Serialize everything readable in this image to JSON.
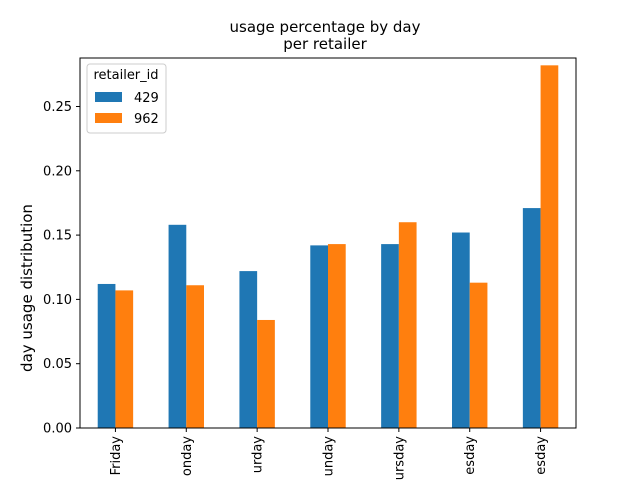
{
  "chart_data": {
    "type": "bar",
    "title_line1": "usage percentage by day",
    "title_line2": "per retailer",
    "xlabel": "",
    "ylabel": "day usage distribution",
    "ylim": [
      0,
      0.2877
    ],
    "yticks": [
      0.0,
      0.05,
      0.1,
      0.15,
      0.2,
      0.25
    ],
    "ytick_labels": [
      "0.00",
      "0.05",
      "0.10",
      "0.15",
      "0.20",
      "0.25"
    ],
    "categories": [
      "Friday",
      "onday",
      "urday",
      "unday",
      "ursday",
      "esday",
      "esday"
    ],
    "series": [
      {
        "name": "429",
        "color": "#1f77b4",
        "values": [
          0.112,
          0.158,
          0.122,
          0.142,
          0.143,
          0.152,
          0.171
        ]
      },
      {
        "name": "962",
        "color": "#ff7f0e",
        "values": [
          0.107,
          0.111,
          0.084,
          0.143,
          0.16,
          0.113,
          0.282
        ]
      }
    ],
    "legend": {
      "title": "retailer_id",
      "placement": "upper-left"
    },
    "grid": false
  }
}
